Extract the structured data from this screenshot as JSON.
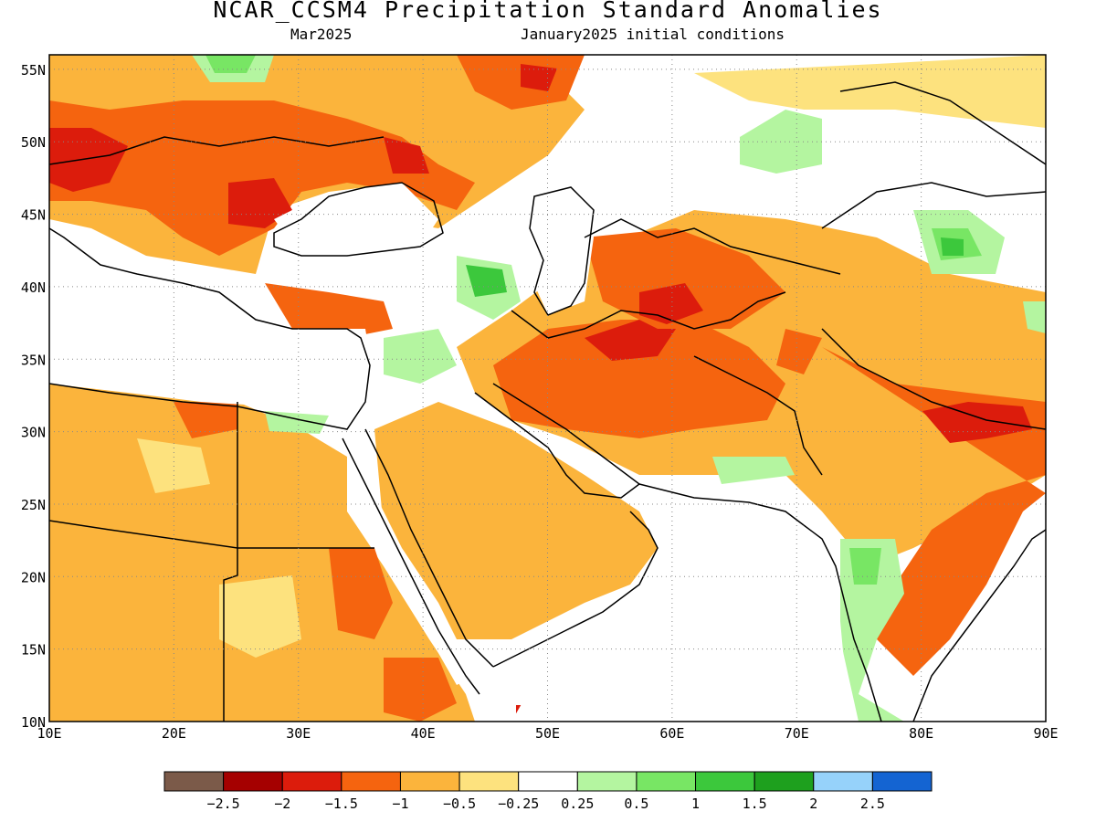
{
  "title": "NCAR_CCSM4 Precipitation Standard Anomalies",
  "subtitle_left": "Mar2025",
  "subtitle_right": "January2025 initial conditions",
  "map": {
    "lon_range": [
      10,
      90
    ],
    "lat_range": [
      10,
      56
    ],
    "lon_ticks": [
      "10E",
      "20E",
      "30E",
      "40E",
      "50E",
      "60E",
      "70E",
      "80E",
      "90E"
    ],
    "lat_ticks": [
      "10N",
      "15N",
      "20N",
      "25N",
      "30N",
      "35N",
      "40N",
      "45N",
      "50N",
      "55N"
    ],
    "gridlines": "dotted"
  },
  "colorbar": {
    "colors": [
      "#7b5a49",
      "#a50000",
      "#dc1c0c",
      "#f5640f",
      "#fbb43c",
      "#fde27e",
      "#ffffff",
      "#b4f5a0",
      "#78e664",
      "#3cc83c",
      "#1ea01e",
      "#96d2fa",
      "#1464d2"
    ],
    "labels": [
      "-2.5",
      "-2",
      "-1.5",
      "-1",
      "-0.5",
      "-0.25",
      "0.25",
      "0.5",
      "1",
      "1.5",
      "2",
      "2.5"
    ]
  }
}
